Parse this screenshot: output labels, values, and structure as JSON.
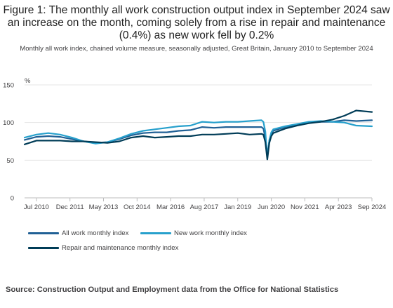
{
  "title": "Figure 1: The monthly all work construction output index in September 2024 saw an increase on the month, coming solely from a rise in repair and maintenance (0.4%) as new work fell by 0.2%",
  "source": "Source: Construction Output and Employment data from the Office for National Statistics",
  "chart_data": {
    "type": "line",
    "title": "Figure 1: The monthly all work construction output index in September 2024 saw an increase on the month, coming solely from a rise in repair and maintenance (0.4%) as new work fell by 0.2%",
    "subtitle": "Monthly all work index, chained volume measure, seasonally adjusted, Great Britain, January 2010 to September 2024",
    "ylabel": "%",
    "xlabel": "",
    "ylim": [
      0,
      150
    ],
    "yticks": [
      "0",
      "50",
      "100",
      "150"
    ],
    "x_tick_labels": [
      "Jul 2010",
      "Dec 2011",
      "May 2013",
      "Oct 2014",
      "Mar 2016",
      "Aug 2017",
      "Jan 2019",
      "Jun 2020",
      "Nov 2021",
      "Apr 2023",
      "Sep 2024"
    ],
    "grid": true,
    "legend_position": "bottom-left",
    "x": [
      "Jan 2010",
      "Jul 2010",
      "Jan 2011",
      "Jul 2011",
      "Jan 2012",
      "Jul 2012",
      "Jan 2013",
      "Jul 2013",
      "Jan 2014",
      "Jul 2014",
      "Jan 2015",
      "Jul 2015",
      "Jan 2016",
      "Jul 2016",
      "Jan 2017",
      "Jul 2017",
      "Jan 2018",
      "Jul 2018",
      "Jan 2019",
      "Jul 2019",
      "Jan 2020",
      "Feb 2020",
      "Mar 2020",
      "Apr 2020",
      "May 2020",
      "Jun 2020",
      "Jul 2020",
      "Jan 2021",
      "Jul 2021",
      "Jan 2022",
      "Jul 2022",
      "Jan 2023",
      "Jul 2023",
      "Jan 2024",
      "Sep 2024"
    ],
    "series": [
      {
        "name": "All work monthly index",
        "color": "#206095",
        "values": [
          77,
          81,
          82,
          81,
          78,
          75,
          73,
          74,
          78,
          83,
          86,
          87,
          87,
          89,
          90,
          94,
          93,
          94,
          94,
          94,
          94,
          92,
          80,
          56,
          76,
          85,
          89,
          94,
          97,
          100,
          101,
          101,
          103,
          102,
          103
        ]
      },
      {
        "name": "New work monthly index",
        "color": "#27a0cc",
        "values": [
          80,
          84,
          86,
          84,
          80,
          75,
          72,
          74,
          79,
          85,
          89,
          91,
          93,
          95,
          96,
          101,
          100,
          101,
          101,
          102,
          103,
          101,
          88,
          53,
          77,
          87,
          91,
          95,
          98,
          101,
          102,
          101,
          100,
          96,
          95
        ]
      },
      {
        "name": "Repair and maintenance monthly index",
        "color": "#003c57",
        "values": [
          71,
          76,
          76,
          76,
          75,
          75,
          74,
          73,
          75,
          80,
          82,
          80,
          81,
          82,
          82,
          84,
          84,
          85,
          86,
          84,
          85,
          84,
          74,
          51,
          73,
          82,
          86,
          92,
          96,
          99,
          101,
          104,
          109,
          116,
          114
        ]
      }
    ]
  }
}
